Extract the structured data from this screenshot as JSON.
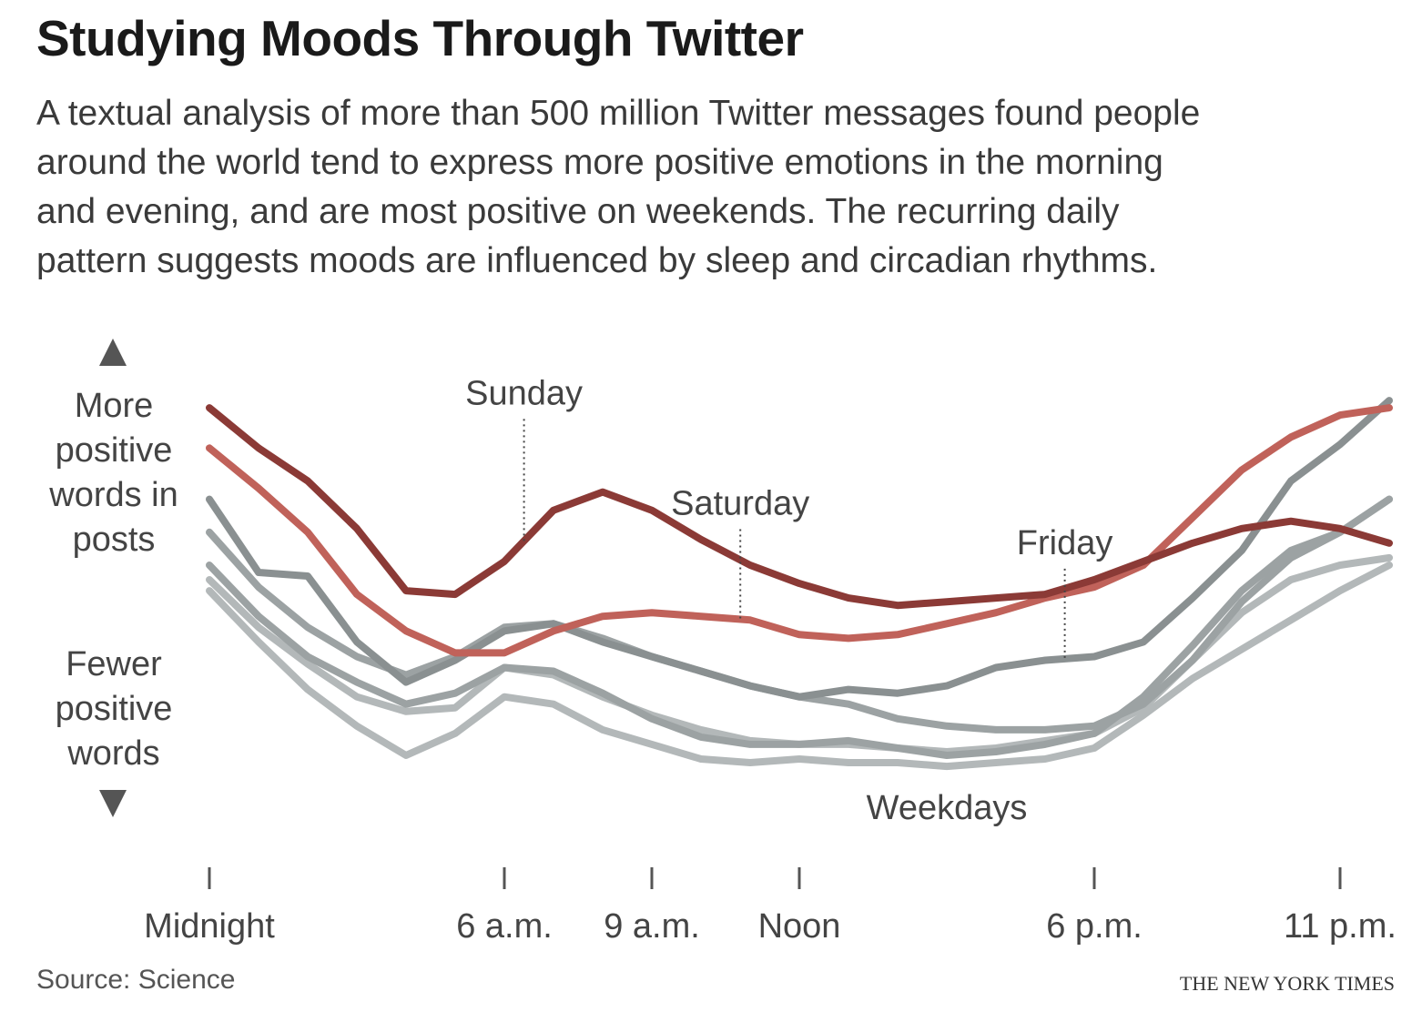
{
  "title": "Studying Moods Through Twitter",
  "description": [
    "A textual analysis of more than 500 million Twitter messages found people",
    "around the world tend to express more positive emotions in the morning",
    "and evening, and are most positive on weekends. The recurring daily",
    "pattern suggests moods are influenced by sleep and circadian rhythms."
  ],
  "y_axis_labels": {
    "top": [
      "More",
      "positive",
      "words in",
      "posts"
    ],
    "bottom": [
      "Fewer",
      "positive",
      "words"
    ]
  },
  "source": "Source: Science",
  "credit": "THE NEW YORK TIMES",
  "colors": {
    "sunday": "#8b3a36",
    "saturday": "#c0625a",
    "weekday_dark": "#8a9091",
    "weekday_mid": "#9ca2a3",
    "weekday_light": "#b3b8b9"
  },
  "chart_data": {
    "type": "line",
    "x_unit": "hours after midnight",
    "y_scale": "relative positivity (unlabeled; higher = more positive words)",
    "x_ticks": [
      {
        "hour": 0,
        "label": "Midnight"
      },
      {
        "hour": 6,
        "label": "6 a.m."
      },
      {
        "hour": 9,
        "label": "9 a.m."
      },
      {
        "hour": 12,
        "label": "Noon"
      },
      {
        "hour": 18,
        "label": "6 p.m."
      },
      {
        "hour": 23,
        "label": "11 p.m."
      }
    ],
    "xlim": [
      0,
      24
    ],
    "ylim": [
      0,
      100
    ],
    "x": [
      0,
      1,
      2,
      3,
      4,
      5,
      6,
      7,
      8,
      9,
      10,
      11,
      12,
      13,
      14,
      15,
      16,
      17,
      18,
      19,
      20,
      21,
      22,
      23,
      24
    ],
    "series": [
      {
        "name": "Sunday",
        "color_key": "sunday",
        "label": "Sunday",
        "label_hour": 6.4,
        "values": [
          95,
          84,
          75,
          62,
          45,
          44,
          53,
          67,
          72,
          67,
          59,
          52,
          47,
          43,
          41,
          42,
          43,
          44,
          48,
          53,
          58,
          62,
          64,
          62,
          58
        ]
      },
      {
        "name": "Saturday",
        "color_key": "saturday",
        "label": "Saturday",
        "label_hour": 10.8,
        "values": [
          84,
          73,
          61,
          44,
          34,
          28,
          28,
          34,
          38,
          39,
          38,
          37,
          33,
          32,
          33,
          36,
          39,
          43,
          46,
          52,
          65,
          78,
          87,
          93,
          95
        ]
      },
      {
        "name": "Friday",
        "color_key": "weekday_dark",
        "label": "Friday",
        "label_hour": 17.4,
        "values": [
          70,
          50,
          49,
          31,
          20,
          26,
          34,
          36,
          31,
          27,
          23,
          19,
          16,
          18,
          17,
          19,
          24,
          26,
          27,
          31,
          43,
          56,
          75,
          85,
          97
        ]
      },
      {
        "name": "Weekday",
        "color_key": "weekday_mid",
        "values": [
          61,
          46,
          35,
          27,
          22,
          27,
          35,
          36,
          32,
          27,
          23,
          19,
          16,
          14,
          10,
          8,
          7,
          7,
          8,
          14,
          26,
          42,
          54,
          61,
          70
        ]
      },
      {
        "name": "Weekday",
        "color_key": "weekday_mid",
        "values": [
          52,
          38,
          27,
          20,
          14,
          17,
          24,
          23,
          17,
          10,
          5,
          3,
          3,
          4,
          2,
          0,
          1,
          3,
          6,
          16,
          30,
          45,
          56,
          61,
          70
        ]
      },
      {
        "name": "Weekday",
        "color_key": "weekday_light",
        "values": [
          48,
          35,
          25,
          16,
          12,
          13,
          24,
          22,
          16,
          11,
          7,
          4,
          3,
          3,
          2,
          1,
          2,
          4,
          6,
          13,
          26,
          39,
          48,
          52,
          54
        ]
      },
      {
        "name": "Weekday",
        "color_key": "weekday_light",
        "values": [
          45,
          31,
          18,
          8,
          0,
          6,
          16,
          14,
          7,
          3,
          -1,
          -2,
          -1,
          -2,
          -2,
          -3,
          -2,
          -1,
          2,
          11,
          21,
          29,
          37,
          45,
          52
        ]
      }
    ],
    "annotations": [
      {
        "text": "Weekdays",
        "hour": 15
      }
    ]
  }
}
